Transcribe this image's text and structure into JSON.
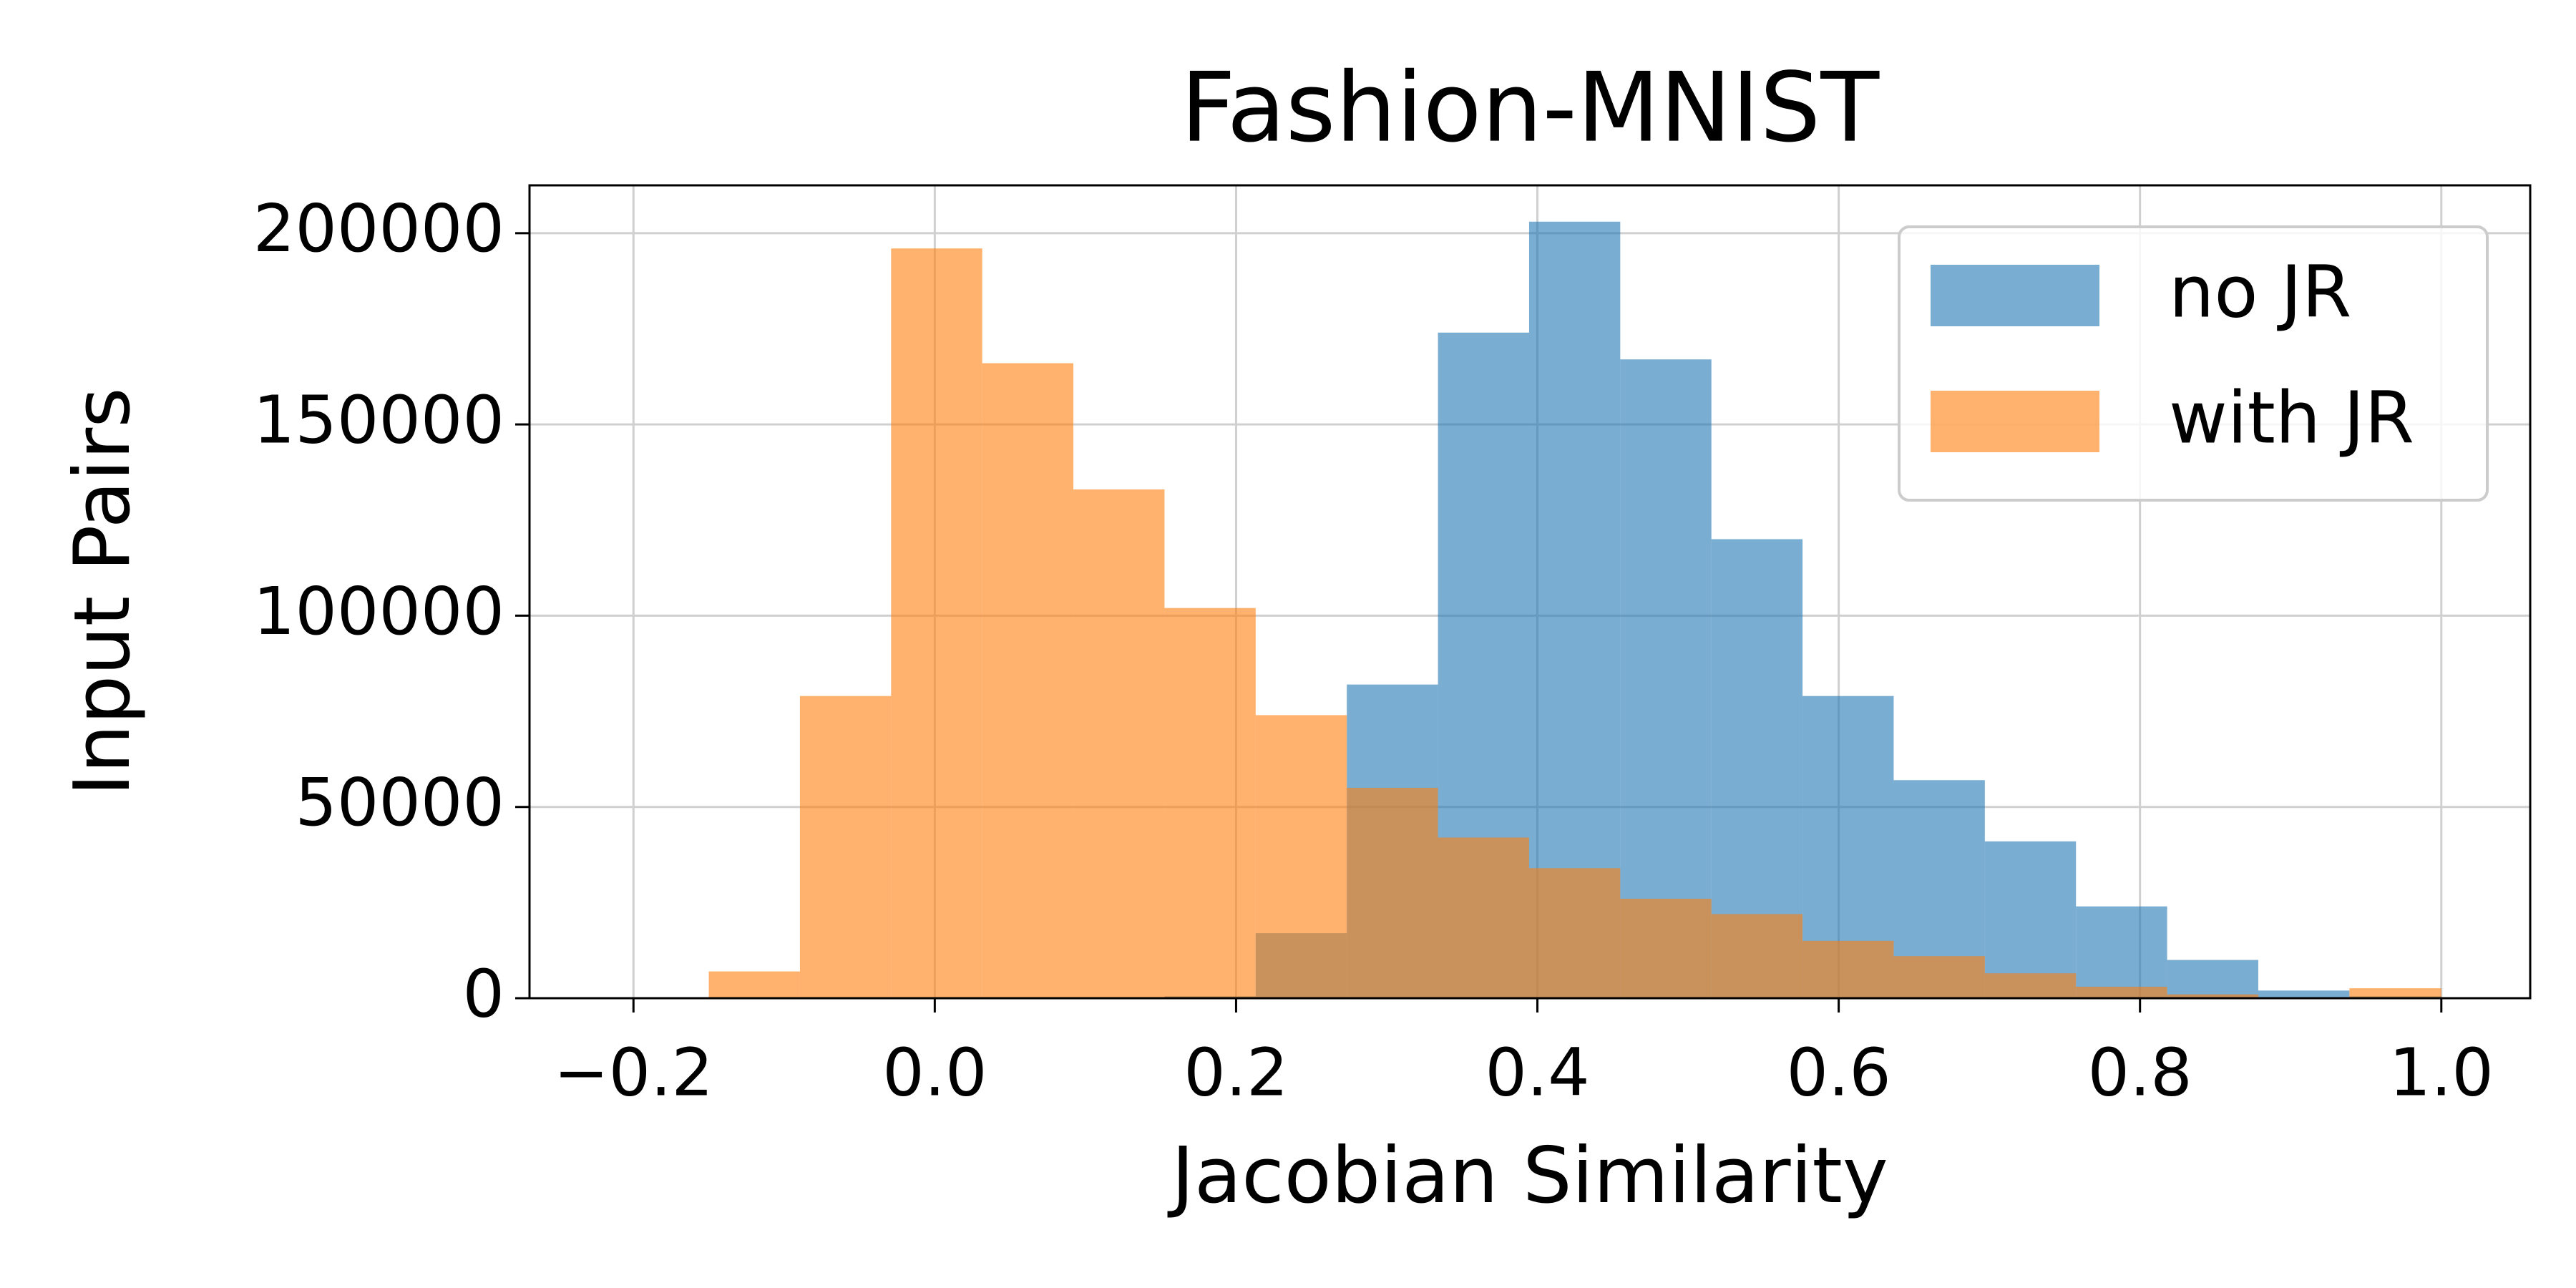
{
  "chart_data": {
    "type": "histogram",
    "title": "Fashion-MNIST",
    "xlabel": "Jacobian Similarity",
    "ylabel": "Input Pairs",
    "bins": [
      -0.15,
      -0.0895,
      -0.029,
      0.0315,
      0.092,
      0.1525,
      0.213,
      0.2735,
      0.334,
      0.3945,
      0.455,
      0.5155,
      0.576,
      0.6365,
      0.697,
      0.7575,
      0.818,
      0.8785,
      0.939,
      1.0
    ],
    "series": [
      {
        "name": "no JR",
        "color": "#1f77b4",
        "values": [
          0,
          0,
          0,
          0,
          0,
          500,
          17000,
          82000,
          174000,
          203000,
          167000,
          120000,
          79000,
          57000,
          41000,
          24000,
          10000,
          2000,
          500
        ]
      },
      {
        "name": "with JR",
        "color": "#ff7f0e",
        "values": [
          7000,
          79000,
          196000,
          166000,
          133000,
          102000,
          74000,
          55000,
          42000,
          34000,
          26000,
          22000,
          15000,
          11000,
          6500,
          3000,
          1000,
          0,
          2600
        ]
      }
    ],
    "opacity": 0.6,
    "xlim": [
      -0.269,
      1.059
    ],
    "ylim": [
      0,
      212500
    ],
    "xticks": [
      {
        "value": -0.2,
        "label": "−0.2"
      },
      {
        "value": 0,
        "label": "0.0"
      },
      {
        "value": 0.2,
        "label": "0.2"
      },
      {
        "value": 0.4,
        "label": "0.4"
      },
      {
        "value": 0.6,
        "label": "0.6"
      },
      {
        "value": 0.8,
        "label": "0.8"
      },
      {
        "value": 1,
        "label": "1.0"
      }
    ],
    "yticks": [
      0,
      50000,
      100000,
      150000,
      200000
    ],
    "grid": true,
    "legend": "upper right"
  }
}
